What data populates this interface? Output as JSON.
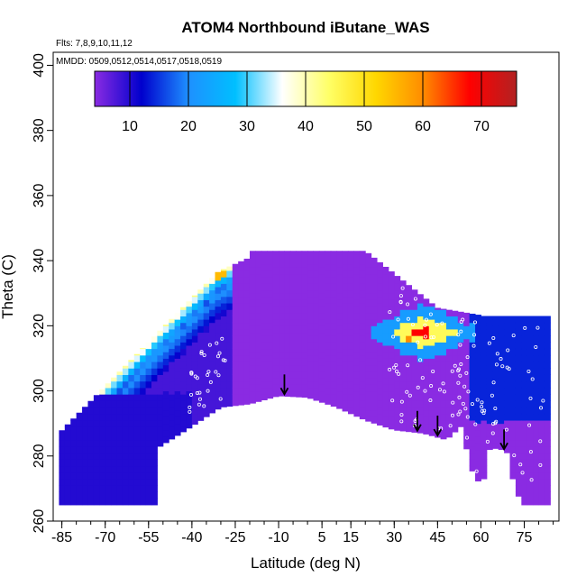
{
  "chart_data": {
    "type": "heatmap",
    "title": "ATOM4 Northbound iButane_WAS",
    "annotations": {
      "flights": "Flts: 7,8,9,10,11,12",
      "dates": "MMDD: 0509,0512,0514,0517,0518,0519"
    },
    "xlabel": "Latitude (deg N)",
    "ylabel": "Theta (C)",
    "xlim": [
      -88,
      87
    ],
    "ylim": [
      260,
      404
    ],
    "xticks": [
      -85,
      -70,
      -55,
      -40,
      -25,
      -10,
      5,
      15,
      30,
      45,
      60,
      75
    ],
    "yticks": [
      260,
      280,
      300,
      320,
      340,
      360,
      380,
      400
    ],
    "colorbar": {
      "min": 4,
      "max": 76,
      "ticks": [
        10,
        20,
        30,
        40,
        50,
        60,
        70
      ],
      "colors": [
        "#8a2be2",
        "#0000cd",
        "#1e90ff",
        "#00bfff",
        "#ffffff",
        "#ffff66",
        "#ffd700",
        "#ff8c00",
        "#ff0000",
        "#b22222"
      ]
    },
    "arrows_latitude": [
      -8,
      38,
      45,
      68
    ],
    "surface_boundary": [
      [
        -53,
        265
      ],
      [
        -51,
        283
      ],
      [
        -42,
        288
      ],
      [
        -30,
        295
      ],
      [
        -20,
        296
      ],
      [
        -10,
        298.5
      ],
      [
        0,
        298
      ],
      [
        10,
        295
      ],
      [
        20,
        291
      ],
      [
        30,
        288
      ],
      [
        40,
        287
      ],
      [
        48,
        285
      ],
      [
        53,
        289
      ],
      [
        58,
        272
      ],
      [
        61,
        273
      ],
      [
        63,
        282
      ],
      [
        66,
        282.5
      ],
      [
        69,
        281
      ],
      [
        71,
        273
      ],
      [
        74,
        265
      ],
      [
        80,
        265
      ]
    ],
    "high_values": [
      {
        "lat": -30,
        "theta": 336,
        "value": 55
      },
      {
        "lat": 35,
        "theta": 316,
        "value": 60
      },
      {
        "lat": 41,
        "theta": 318,
        "value": 68
      }
    ]
  }
}
